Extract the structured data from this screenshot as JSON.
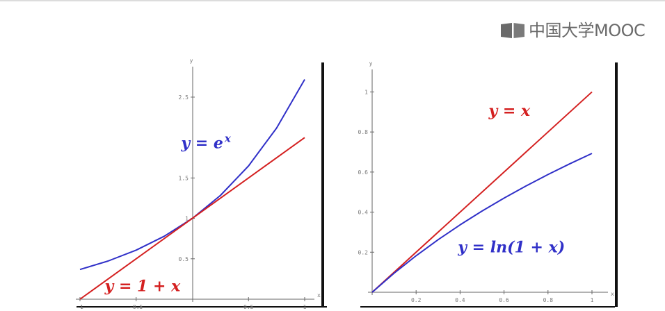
{
  "brand": {
    "logo_text": "中国大学MOOC",
    "logo_icon": "book-icon",
    "logo_color": "#6a6a6a"
  },
  "chart_data": [
    {
      "type": "line",
      "xlabel": "x",
      "ylabel": "y",
      "xlim": [
        -1,
        1
      ],
      "ylim": [
        0,
        2.8
      ],
      "x_ticks": [
        -1,
        -0.5,
        0.5,
        1
      ],
      "x_tick_labels": [
        "-1",
        "-0.5",
        "0.5",
        "1"
      ],
      "y_ticks": [
        0.5,
        1,
        1.5,
        2.5
      ],
      "y_tick_labels": [
        "0.5",
        "1",
        "1.5",
        "2.5"
      ],
      "series": [
        {
          "name": "y = e^x",
          "color": "#3030c8",
          "x": [
            -1,
            -0.75,
            -0.5,
            -0.25,
            0,
            0.25,
            0.5,
            0.75,
            1
          ],
          "y": [
            0.368,
            0.472,
            0.607,
            0.779,
            1.0,
            1.284,
            1.649,
            2.117,
            2.718
          ]
        },
        {
          "name": "y = 1 + x",
          "color": "#d42020",
          "x": [
            -1,
            1
          ],
          "y": [
            0,
            2
          ]
        }
      ],
      "annotations": [
        {
          "text": "y = e",
          "sup": "x",
          "color": "#3030c8",
          "at": [
            -0.1,
            1.87
          ]
        },
        {
          "text": "y = 1 + x",
          "color": "#d42020",
          "at": [
            -0.78,
            0.1
          ]
        }
      ]
    },
    {
      "type": "line",
      "xlabel": "x",
      "ylabel": "y",
      "xlim": [
        0,
        1
      ],
      "ylim": [
        0,
        1.05
      ],
      "x_ticks": [
        0.2,
        0.4,
        0.6,
        0.8,
        1
      ],
      "x_tick_labels": [
        "0.2",
        "0.4",
        "0.6",
        "0.8",
        "1"
      ],
      "y_ticks": [
        0.2,
        0.4,
        0.6,
        0.8,
        1
      ],
      "y_tick_labels": [
        "0.2",
        "0.4",
        "0.6",
        "0.8",
        "1"
      ],
      "series": [
        {
          "name": "y = x",
          "color": "#d42020",
          "x": [
            0,
            1
          ],
          "y": [
            0,
            1
          ]
        },
        {
          "name": "y = ln(1 + x)",
          "color": "#3030c8",
          "x": [
            0,
            0.1,
            0.2,
            0.3,
            0.4,
            0.5,
            0.6,
            0.7,
            0.8,
            0.9,
            1
          ],
          "y": [
            0,
            0.0953,
            0.1823,
            0.2624,
            0.3365,
            0.4055,
            0.47,
            0.5306,
            0.5878,
            0.6419,
            0.6931
          ]
        }
      ],
      "annotations": [
        {
          "text": "y = x",
          "color": "#d42020",
          "at": [
            0.53,
            0.88
          ]
        },
        {
          "text": "y = ln(1 + x)",
          "color": "#3030c8",
          "at": [
            0.39,
            0.2
          ]
        }
      ]
    }
  ]
}
